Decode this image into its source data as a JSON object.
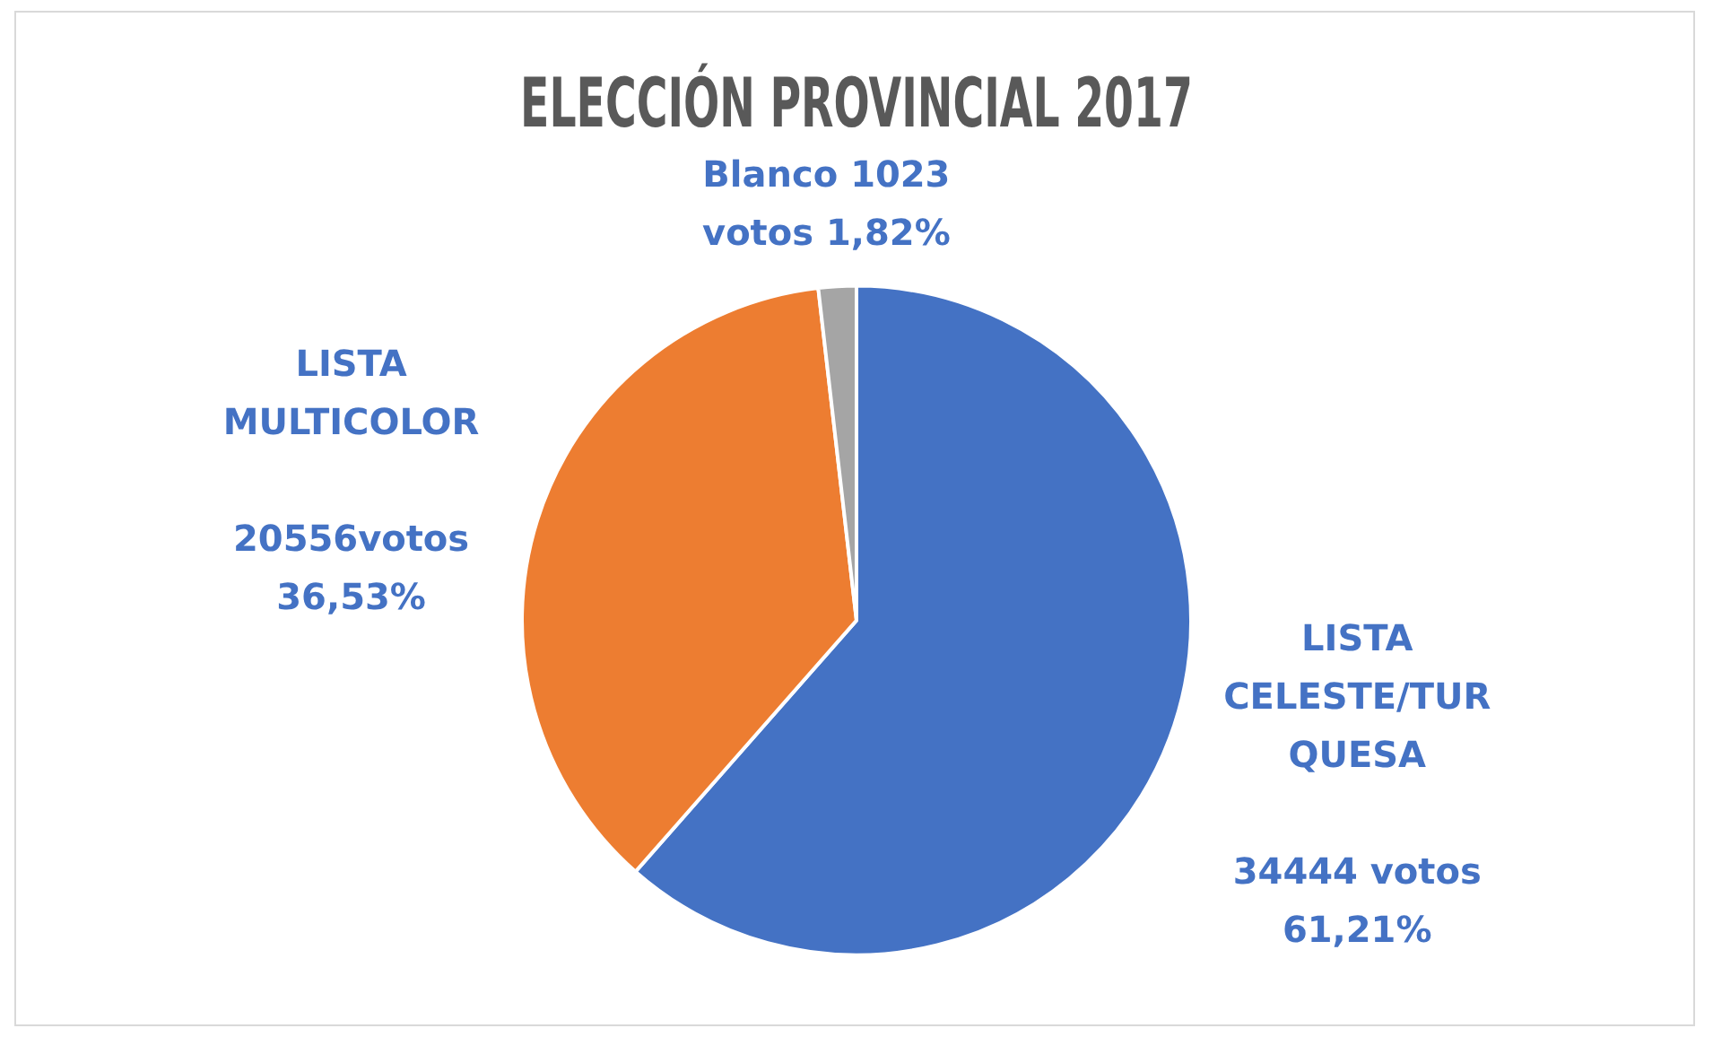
{
  "chart_data": {
    "type": "pie",
    "title": "ELECCIÓN PROVINCIAL 2017",
    "categories": [
      "LISTA CELESTE/TURQUESA",
      "LISTA MULTICOLOR",
      "Blanco"
    ],
    "values": [
      34444,
      20556,
      1023
    ],
    "colors": [
      "#4472c4",
      "#ed7d31",
      "#a5a5a5"
    ],
    "value_labels": [
      "34444 votos 61,21%",
      "20556votos 36,53%",
      "1023 votos 1,82%"
    ],
    "legend": false
  }
}
